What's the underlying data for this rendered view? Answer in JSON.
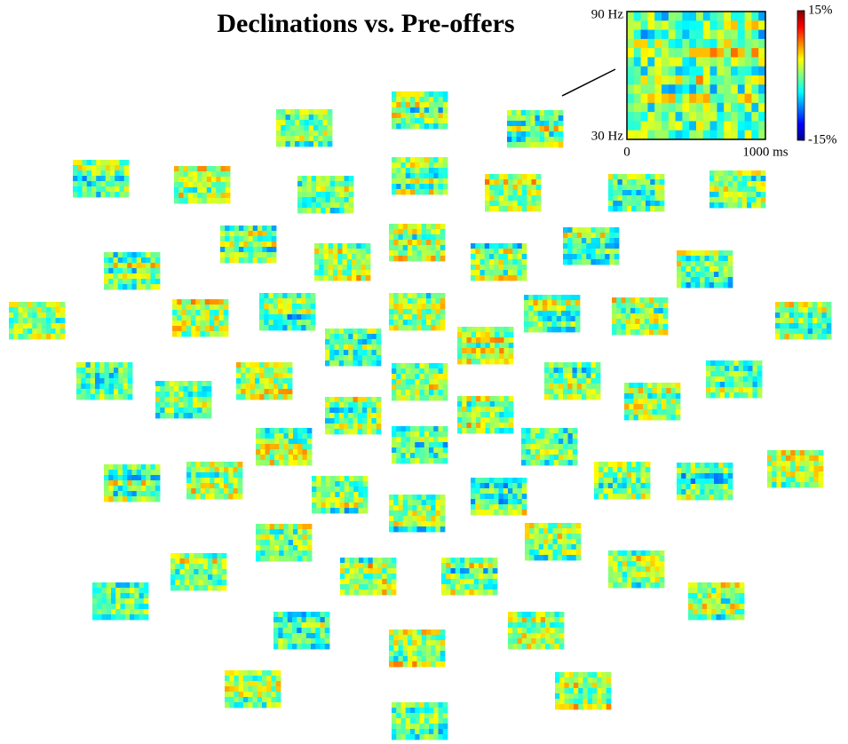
{
  "chart_data": {
    "type": "heatmap-grid",
    "title": "Declinations vs. Pre-offers",
    "xlim": [
      0,
      1000
    ],
    "xticks": [
      0,
      {
        "value": 1000,
        "label": "1000 ms"
      }
    ],
    "ylim": [
      30,
      90
    ],
    "yticks": [
      {
        "value": 30,
        "label": "30 Hz"
      },
      {
        "value": 90,
        "label": "90 Hz"
      }
    ],
    "colorbar": {
      "lim": [
        -15,
        15
      ],
      "ticks": [
        {
          "value": 15,
          "label": "15%"
        },
        {
          "value": -15,
          "label": "-15%"
        }
      ]
    }
  }
}
